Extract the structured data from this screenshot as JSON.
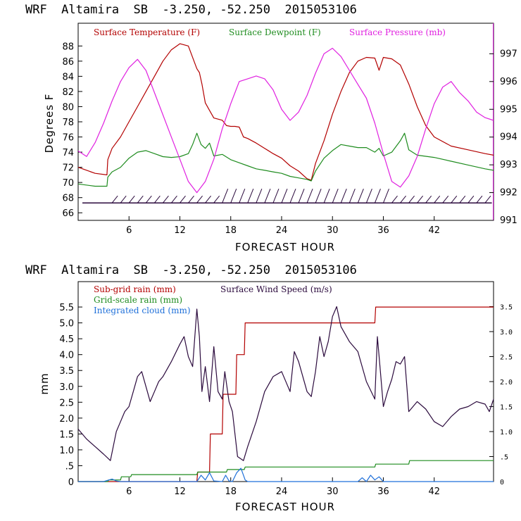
{
  "chart_data": [
    {
      "type": "line",
      "title": "WRF  Altamira  SB  -3.250, -52.250  2015053106",
      "xlabel": "FORECAST HOUR",
      "ylabel": "Degrees F",
      "xlim": [
        0,
        49
      ],
      "ylim": [
        65,
        91
      ],
      "y2lim": [
        991,
        998.1
      ],
      "xticks": [
        6,
        12,
        18,
        24,
        30,
        36,
        42
      ],
      "xtick_labels": [
        "6",
        "12",
        "18",
        "24",
        "30",
        "36",
        "42"
      ],
      "yticks": [
        66,
        68,
        70,
        72,
        74,
        76,
        78,
        80,
        82,
        84,
        86,
        88
      ],
      "ytick_labels": [
        "66",
        "68",
        "70",
        "72",
        "74",
        "76",
        "78",
        "80",
        "82",
        "84",
        "86",
        "88"
      ],
      "y2ticks": [
        991,
        992,
        993,
        994,
        995,
        996,
        997
      ],
      "y2tick_labels": [
        "991",
        "992",
        "993",
        "994",
        "995",
        "996",
        "997"
      ],
      "colors": {
        "temp": "#b30000",
        "dew": "#1f8c1f",
        "pres": "#e020e0",
        "wind": "#2b0a3d"
      },
      "legend": [
        "Surface Temperature (F)",
        "Surface Dewpoint (F)",
        "Surface Pressure (mb)"
      ],
      "series": [
        {
          "name": "Surface Temperature (F)",
          "axis": "left",
          "x": [
            0,
            2,
            3.4,
            3.5,
            4,
            5,
            6,
            7,
            8,
            9,
            10,
            11,
            12,
            13,
            14,
            14.3,
            14.6,
            15,
            15.5,
            16,
            17,
            17.5,
            18,
            18.5,
            19,
            19.5,
            20,
            21,
            22,
            23,
            24,
            25,
            26,
            27,
            27.5,
            28,
            29,
            30,
            31,
            32,
            33,
            34,
            35,
            35.5,
            36,
            37,
            38,
            39,
            40,
            41,
            42,
            44,
            46,
            48,
            49
          ],
          "values": [
            72,
            71.2,
            71,
            73,
            74.5,
            76,
            78,
            80,
            82,
            84,
            86,
            87.5,
            88.3,
            88,
            85,
            84.5,
            83,
            80.5,
            79.5,
            78.5,
            78.2,
            77.5,
            77.4,
            77.4,
            77.3,
            76,
            75.8,
            75.2,
            74.5,
            73.8,
            73.2,
            72.2,
            71.5,
            70.5,
            70.3,
            72.5,
            75.5,
            79,
            82,
            84.5,
            86,
            86.5,
            86.4,
            84.8,
            86.5,
            86.3,
            85.5,
            83,
            80,
            77.5,
            76,
            74.8,
            74.3,
            73.8,
            73.6
          ]
        },
        {
          "name": "Surface Dewpoint (F)",
          "axis": "left",
          "x": [
            0,
            2,
            3.4,
            3.5,
            4,
            5,
            6,
            7,
            8,
            9,
            10,
            11,
            12,
            13,
            13.5,
            14,
            14.5,
            15,
            15.5,
            16,
            17,
            18,
            19,
            20,
            21,
            22,
            23,
            24,
            25,
            26,
            27,
            27.5,
            28,
            29,
            30,
            31,
            32,
            33,
            34,
            35,
            35.5,
            36,
            37,
            38,
            38.5,
            39,
            40,
            42,
            44,
            46,
            48,
            49
          ],
          "values": [
            69.8,
            69.5,
            69.5,
            70.7,
            71.4,
            72,
            73.2,
            74,
            74.2,
            73.8,
            73.4,
            73.3,
            73.4,
            73.8,
            75,
            76.5,
            75,
            74.5,
            75.2,
            73.5,
            73.7,
            73,
            72.6,
            72.2,
            71.8,
            71.6,
            71.4,
            71.2,
            70.8,
            70.6,
            70.4,
            70.2,
            71.5,
            73.2,
            74.2,
            75,
            74.8,
            74.6,
            74.6,
            74,
            74.5,
            73.5,
            74,
            75.5,
            76.5,
            74.3,
            73.6,
            73.3,
            72.8,
            72.3,
            71.8,
            71.6
          ]
        },
        {
          "name": "Surface Pressure (mb)",
          "axis": "right",
          "x": [
            0,
            1,
            2,
            3,
            4,
            5,
            6,
            7,
            8,
            9,
            10,
            11,
            12,
            13,
            14,
            15,
            16,
            17,
            18,
            19,
            20,
            21,
            22,
            23,
            24,
            25,
            26,
            27,
            28,
            29,
            30,
            31,
            32,
            33,
            34,
            35,
            36,
            37,
            38,
            39,
            40,
            41,
            42,
            43,
            44,
            45,
            46,
            47,
            48,
            49
          ],
          "values": [
            993.5,
            993.3,
            993.8,
            994.5,
            995.3,
            996,
            996.5,
            996.8,
            996.4,
            995.6,
            994.8,
            994,
            993.2,
            992.4,
            992,
            992.4,
            993.2,
            994.3,
            995.2,
            996,
            996.1,
            996.2,
            996.1,
            995.7,
            995,
            994.6,
            994.9,
            995.5,
            996.3,
            997,
            997.2,
            996.9,
            996.4,
            995.9,
            995.4,
            994.5,
            993.4,
            992.4,
            992.2,
            992.6,
            993.3,
            994.3,
            995.2,
            995.8,
            996,
            995.6,
            995.3,
            994.9,
            994.7,
            994.6
          ]
        }
      ]
    },
    {
      "type": "line",
      "title": "WRF  Altamira  SB  -3.250, -52.250  2015053106",
      "xlabel": "FORECAST HOUR",
      "ylabel": "mm",
      "xlim": [
        0,
        49
      ],
      "ylim": [
        0,
        6.3
      ],
      "y2lim": [
        0,
        4.0
      ],
      "xticks": [
        6,
        12,
        18,
        24,
        30,
        36,
        42
      ],
      "xtick_labels": [
        "6",
        "12",
        "18",
        "24",
        "30",
        "36",
        "42"
      ],
      "yticks": [
        0,
        0.5,
        1.0,
        1.5,
        2.0,
        2.5,
        3.0,
        3.5,
        4.0,
        4.5,
        5.0,
        5.5
      ],
      "ytick_labels": [
        "0",
        ".5",
        "1.0",
        "1.5",
        "2.0",
        "2.5",
        "3.0",
        "3.5",
        "4.0",
        "4.5",
        "5.0",
        "5.5"
      ],
      "y2ticks": [
        0,
        0.5,
        1.0,
        1.5,
        2.0,
        2.5,
        3.0,
        3.5
      ],
      "y2tick_labels": [
        "0",
        ".5",
        "1.0",
        "1.5",
        "2.0",
        "2.5",
        "3.0",
        "3.5"
      ],
      "colors": {
        "subgrid": "#b30000",
        "grid": "#1f8c1f",
        "cloud": "#1e6fd9",
        "wind": "#2b0a3d"
      },
      "legend": [
        "Sub-grid rain (mm)",
        "Surface Wind Speed (m/s)",
        "Grid-scale rain (mm)",
        "Integrated cloud (mm)"
      ],
      "series": [
        {
          "name": "Sub-grid rain (mm)",
          "axis": "left",
          "x": [
            0,
            14,
            14.1,
            15.5,
            15.6,
            17,
            17.1,
            18.6,
            18.7,
            19.6,
            19.7,
            35,
            35.1,
            49
          ],
          "values": [
            0,
            0,
            0.3,
            0.3,
            1.5,
            1.5,
            2.75,
            2.75,
            4.0,
            4.0,
            5.0,
            5.0,
            5.5,
            5.5
          ]
        },
        {
          "name": "Grid-scale rain (mm)",
          "axis": "left",
          "x": [
            0,
            3.5,
            3.6,
            5,
            5.1,
            6.2,
            6.3,
            14,
            14.1,
            17.5,
            17.6,
            19.6,
            19.7,
            35,
            35.1,
            39,
            39.1,
            49
          ],
          "values": [
            0,
            0,
            0.05,
            0.05,
            0.15,
            0.15,
            0.22,
            0.22,
            0.3,
            0.3,
            0.38,
            0.38,
            0.46,
            0.46,
            0.55,
            0.55,
            0.66,
            0.66
          ]
        },
        {
          "name": "Integrated cloud (mm)",
          "axis": "left",
          "x": [
            0,
            3,
            3.5,
            4,
            4.5,
            5,
            14,
            14.5,
            15,
            15.5,
            16,
            17,
            17.4,
            17.8,
            18.2,
            18.7,
            19.2,
            19.7,
            20,
            33,
            33.5,
            34,
            34.5,
            35,
            35.5,
            36,
            37,
            49
          ],
          "values": [
            0,
            0,
            0.04,
            0.08,
            0.02,
            0,
            0,
            0.2,
            0.05,
            0.28,
            0.02,
            0,
            0.2,
            0.02,
            0,
            0.28,
            0.42,
            0.05,
            0,
            0,
            0.12,
            0,
            0.2,
            0.05,
            0.15,
            0,
            0,
            0
          ]
        },
        {
          "name": "Surface Wind Speed (m/s)",
          "axis": "right",
          "x": [
            0,
            1,
            2,
            3,
            3.8,
            4.5,
            5,
            5.5,
            6,
            6.5,
            7,
            7.5,
            8,
            8.5,
            9,
            9.5,
            10,
            11,
            12,
            12.5,
            13,
            13.5,
            14,
            14.3,
            14.6,
            15,
            15.5,
            16,
            16.5,
            17,
            17.3,
            17.8,
            18.2,
            18.8,
            19.5,
            20,
            21,
            22,
            23,
            24,
            25,
            25.5,
            26,
            27,
            27.5,
            28,
            28.5,
            29,
            29.5,
            30,
            30.5,
            31,
            32,
            33,
            34,
            35,
            35.3,
            35.6,
            36,
            36.5,
            37,
            37.5,
            38,
            38.5,
            39,
            40,
            41,
            42,
            43,
            44,
            45,
            46,
            47,
            48,
            48.5,
            49
          ],
          "values": [
            1.05,
            0.85,
            0.7,
            0.55,
            0.42,
            1.0,
            1.2,
            1.4,
            1.5,
            1.8,
            2.1,
            2.2,
            1.9,
            1.6,
            1.8,
            2.0,
            2.1,
            2.4,
            2.75,
            2.9,
            2.5,
            2.3,
            3.45,
            2.9,
            1.8,
            2.3,
            1.6,
            2.7,
            1.8,
            1.65,
            2.2,
            1.6,
            1.4,
            0.5,
            0.42,
            0.7,
            1.2,
            1.8,
            2.1,
            2.2,
            1.8,
            2.6,
            2.4,
            1.8,
            1.7,
            2.2,
            2.9,
            2.5,
            2.8,
            3.3,
            3.5,
            3.1,
            2.8,
            2.6,
            2.0,
            1.65,
            2.9,
            2.3,
            1.5,
            1.8,
            2.05,
            2.4,
            2.35,
            2.5,
            1.4,
            1.6,
            1.45,
            1.2,
            1.1,
            1.3,
            1.45,
            1.5,
            1.6,
            1.55,
            1.4,
            1.65
          ]
        }
      ]
    }
  ]
}
